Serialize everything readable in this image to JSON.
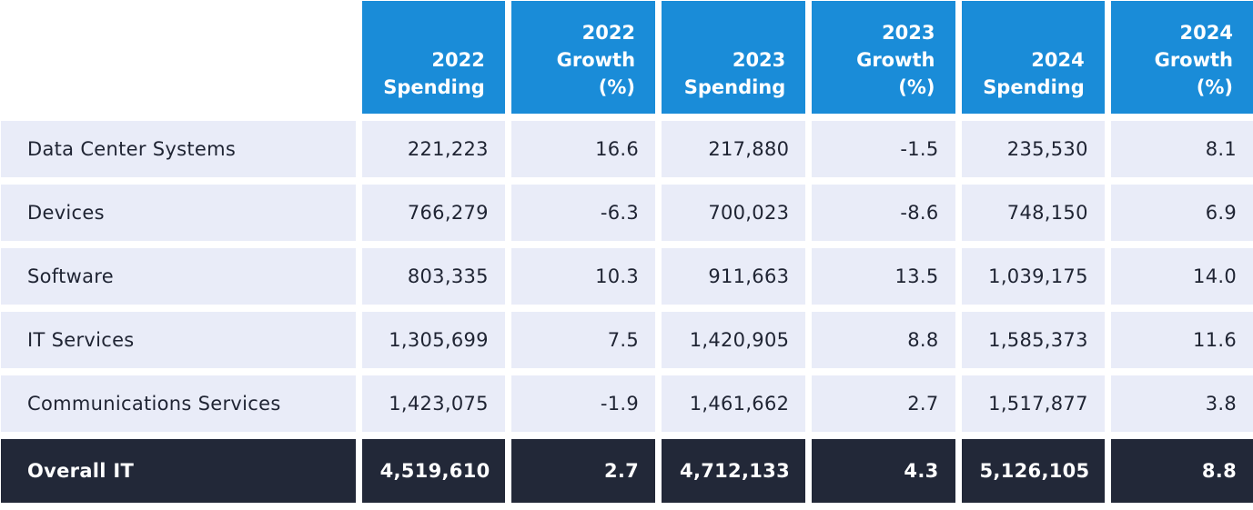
{
  "chart_data": {
    "type": "table",
    "columns": [
      "",
      "2022 Spending",
      "2022 Growth (%)",
      "2023 Spending",
      "2023 Growth (%)",
      "2024 Spending",
      "2024 Growth (%)"
    ],
    "header_lines": [
      [],
      [
        "2022",
        "Spending"
      ],
      [
        "2022",
        "Growth",
        "(%)"
      ],
      [
        "2023",
        "Spending"
      ],
      [
        "2023",
        "Growth",
        "(%)"
      ],
      [
        "2024",
        "Spending"
      ],
      [
        "2024",
        "Growth",
        "(%)"
      ]
    ],
    "rows": [
      [
        "Data Center Systems",
        "221,223",
        "16.6",
        "217,880",
        "-1.5",
        "235,530",
        "8.1"
      ],
      [
        "Devices",
        "766,279",
        "-6.3",
        "700,023",
        "-8.6",
        "748,150",
        "6.9"
      ],
      [
        "Software",
        "803,335",
        "10.3",
        "911,663",
        "13.5",
        "1,039,175",
        "14.0"
      ],
      [
        "IT Services",
        "1,305,699",
        "7.5",
        "1,420,905",
        "8.8",
        "1,585,373",
        "11.6"
      ],
      [
        "Communications Services",
        "1,423,075",
        "-1.9",
        "1,461,662",
        "2.7",
        "1,517,877",
        "3.8"
      ]
    ],
    "total_row": [
      "Overall IT",
      "4,519,610",
      "2.7",
      "4,712,133",
      "4.3",
      "5,126,105",
      "8.8"
    ]
  },
  "colors": {
    "header_bg": "#1a8cd8",
    "row_bg": "#e9ecf8",
    "total_bg": "#222838"
  }
}
